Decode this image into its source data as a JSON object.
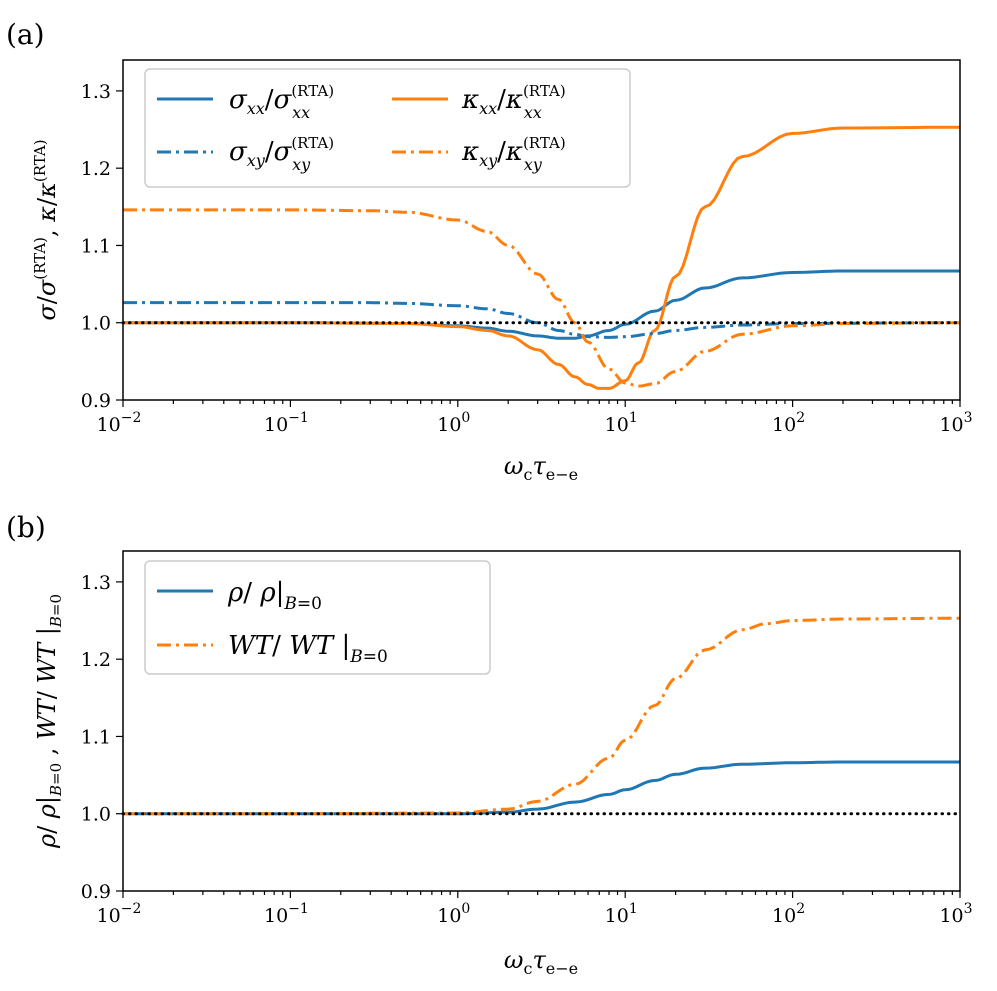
{
  "colors": {
    "blue": "#1f77b4",
    "orange": "#ff7f0e",
    "ref": "#000000"
  },
  "chart_data": [
    {
      "panel": "(a)",
      "type": "line",
      "x_scale": "log",
      "xlim": [
        0.01,
        1000
      ],
      "ylim": [
        0.9,
        1.34
      ],
      "xlabel": "ωcτe−e",
      "ylabel": "σ/σ(RTA), κ/κ(RTA)",
      "x_ticks": [
        {
          "value": 0.01,
          "base": "10",
          "exp": "−2"
        },
        {
          "value": 0.1,
          "base": "10",
          "exp": "−1"
        },
        {
          "value": 1,
          "base": "10",
          "exp": "0"
        },
        {
          "value": 10,
          "base": "10",
          "exp": "1"
        },
        {
          "value": 100,
          "base": "10",
          "exp": "2"
        },
        {
          "value": 1000,
          "base": "10",
          "exp": "3"
        }
      ],
      "y_ticks": [
        "0.9",
        "1.0",
        "1.1",
        "1.2",
        "1.3"
      ],
      "legend": [
        "σxx/σxx(RTA)",
        "κxx/κxx(RTA)",
        "σxy/σxy(RTA)",
        "κxy/κxy(RTA)"
      ],
      "series": [
        {
          "name": "σxx/σxx(RTA)",
          "color": "#1f77b4",
          "style": "solid",
          "x": [
            0.01,
            0.1,
            0.5,
            1,
            1.5,
            2,
            3,
            4,
            5,
            6,
            8,
            10,
            15,
            20,
            30,
            50,
            100,
            200,
            1000
          ],
          "y": [
            1.0,
            1.0,
            0.999,
            0.996,
            0.993,
            0.989,
            0.983,
            0.98,
            0.98,
            0.983,
            0.99,
            0.998,
            1.015,
            1.029,
            1.045,
            1.058,
            1.065,
            1.067,
            1.067
          ]
        },
        {
          "name": "κxx/κxx(RTA)",
          "color": "#ff7f0e",
          "style": "solid",
          "x": [
            0.01,
            0.1,
            0.5,
            1,
            1.5,
            2,
            3,
            4,
            5,
            6,
            7,
            8,
            10,
            12,
            15,
            20,
            30,
            50,
            100,
            200,
            1000
          ],
          "y": [
            1.0,
            1.0,
            0.999,
            0.995,
            0.99,
            0.983,
            0.965,
            0.946,
            0.93,
            0.92,
            0.915,
            0.915,
            0.925,
            0.948,
            0.99,
            1.06,
            1.15,
            1.215,
            1.245,
            1.252,
            1.253
          ]
        },
        {
          "name": "σxy/σxy(RTA)",
          "color": "#1f77b4",
          "style": "dashdot",
          "x": [
            0.01,
            0.1,
            0.3,
            0.5,
            1,
            1.5,
            2,
            3,
            4,
            5,
            6,
            8,
            10,
            15,
            20,
            30,
            50,
            100,
            1000
          ],
          "y": [
            1.026,
            1.026,
            1.026,
            1.025,
            1.022,
            1.018,
            1.012,
            1.0,
            0.99,
            0.985,
            0.982,
            0.981,
            0.982,
            0.986,
            0.99,
            0.994,
            0.997,
            0.999,
            1.0
          ]
        },
        {
          "name": "κxy/κxy(RTA)",
          "color": "#ff7f0e",
          "style": "dashdot",
          "x": [
            0.01,
            0.1,
            0.3,
            0.5,
            1,
            1.5,
            2,
            3,
            4,
            5,
            6,
            8,
            10,
            12,
            15,
            20,
            30,
            50,
            100,
            200,
            1000
          ],
          "y": [
            1.146,
            1.146,
            1.145,
            1.143,
            1.133,
            1.118,
            1.1,
            1.063,
            1.03,
            1.0,
            0.975,
            0.94,
            0.922,
            0.918,
            0.921,
            0.937,
            0.963,
            0.985,
            0.996,
            0.999,
            1.0
          ]
        },
        {
          "name": "reference",
          "color": "#000000",
          "style": "dotted",
          "x": [
            0.01,
            1000
          ],
          "y": [
            1.0,
            1.0
          ]
        }
      ]
    },
    {
      "panel": "(b)",
      "type": "line",
      "x_scale": "log",
      "xlim": [
        0.01,
        1000
      ],
      "ylim": [
        0.9,
        1.34
      ],
      "xlabel": "ωcτe−e",
      "ylabel": "ρ/ ρ|B=0 , WT/ WT |B=0",
      "x_ticks": [
        {
          "value": 0.01,
          "base": "10",
          "exp": "−2"
        },
        {
          "value": 0.1,
          "base": "10",
          "exp": "−1"
        },
        {
          "value": 1,
          "base": "10",
          "exp": "0"
        },
        {
          "value": 10,
          "base": "10",
          "exp": "1"
        },
        {
          "value": 100,
          "base": "10",
          "exp": "2"
        },
        {
          "value": 1000,
          "base": "10",
          "exp": "3"
        }
      ],
      "y_ticks": [
        "0.9",
        "1.0",
        "1.1",
        "1.2",
        "1.3"
      ],
      "legend": [
        "ρ/ ρ|B=0",
        "WT/ WT |B=0"
      ],
      "series": [
        {
          "name": "ρ/ ρ|B=0",
          "color": "#1f77b4",
          "style": "solid",
          "x": [
            0.01,
            0.1,
            1,
            2,
            3,
            5,
            8,
            10,
            15,
            20,
            30,
            50,
            100,
            200,
            1000
          ],
          "y": [
            1.0,
            1.0,
            1.0,
            1.002,
            1.006,
            1.015,
            1.025,
            1.031,
            1.043,
            1.051,
            1.059,
            1.064,
            1.066,
            1.067,
            1.067
          ]
        },
        {
          "name": "WT/ WT |B=0",
          "color": "#ff7f0e",
          "style": "dashdot",
          "x": [
            0.01,
            0.1,
            1,
            2,
            3,
            5,
            8,
            10,
            15,
            20,
            30,
            50,
            70,
            100,
            200,
            1000
          ],
          "y": [
            1.0,
            1.0,
            1.001,
            1.006,
            1.016,
            1.038,
            1.072,
            1.095,
            1.14,
            1.175,
            1.212,
            1.238,
            1.246,
            1.25,
            1.252,
            1.253
          ]
        },
        {
          "name": "reference",
          "color": "#000000",
          "style": "dotted",
          "x": [
            0.01,
            1000
          ],
          "y": [
            1.0,
            1.0
          ]
        }
      ]
    }
  ]
}
